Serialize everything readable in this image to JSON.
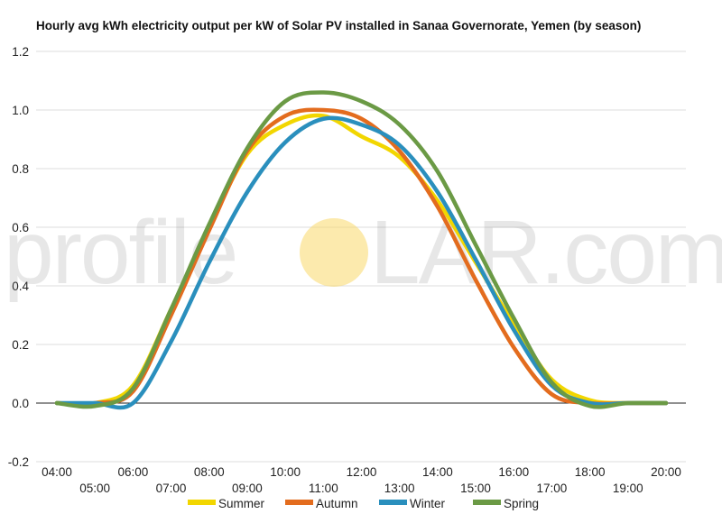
{
  "chart_data": {
    "type": "line",
    "title": "Hourly avg kWh electricity output per kW of Solar PV installed in Sanaa Governorate, Yemen (by season)",
    "xlabel": "",
    "ylabel": "",
    "ylim": [
      -0.2,
      1.2
    ],
    "yticks": [
      "-0.2",
      "0.0",
      "0.2",
      "0.4",
      "0.6",
      "0.8",
      "1.0",
      "1.2"
    ],
    "x": [
      "04:00",
      "05:00",
      "06:00",
      "07:00",
      "08:00",
      "09:00",
      "10:00",
      "11:00",
      "12:00",
      "13:00",
      "14:00",
      "15:00",
      "16:00",
      "17:00",
      "18:00",
      "19:00",
      "20:00"
    ],
    "grid": true,
    "legend_position": "bottom",
    "series": [
      {
        "name": "Summer",
        "color": "#f2d600",
        "values": [
          0.0,
          0.0,
          0.06,
          0.32,
          0.6,
          0.85,
          0.95,
          0.98,
          0.91,
          0.84,
          0.69,
          0.48,
          0.27,
          0.08,
          0.01,
          0.0,
          0.0
        ]
      },
      {
        "name": "Autumn",
        "color": "#e36c1e",
        "values": [
          0.0,
          0.0,
          0.04,
          0.3,
          0.59,
          0.86,
          0.98,
          1.0,
          0.97,
          0.86,
          0.67,
          0.42,
          0.19,
          0.03,
          0.0,
          0.0,
          0.0
        ]
      },
      {
        "name": "Winter",
        "color": "#2a8fbd",
        "values": [
          0.0,
          0.0,
          0.0,
          0.21,
          0.48,
          0.72,
          0.89,
          0.97,
          0.95,
          0.88,
          0.72,
          0.49,
          0.25,
          0.06,
          0.0,
          0.0,
          0.0
        ]
      },
      {
        "name": "Spring",
        "color": "#6b9a45",
        "values": [
          0.0,
          -0.01,
          0.05,
          0.32,
          0.61,
          0.87,
          1.03,
          1.06,
          1.03,
          0.95,
          0.79,
          0.54,
          0.29,
          0.07,
          -0.01,
          0.0,
          0.0
        ]
      }
    ]
  },
  "watermark": {
    "left": "profile",
    "right": "LAR.com",
    "sun_color": "#f9d96a"
  }
}
